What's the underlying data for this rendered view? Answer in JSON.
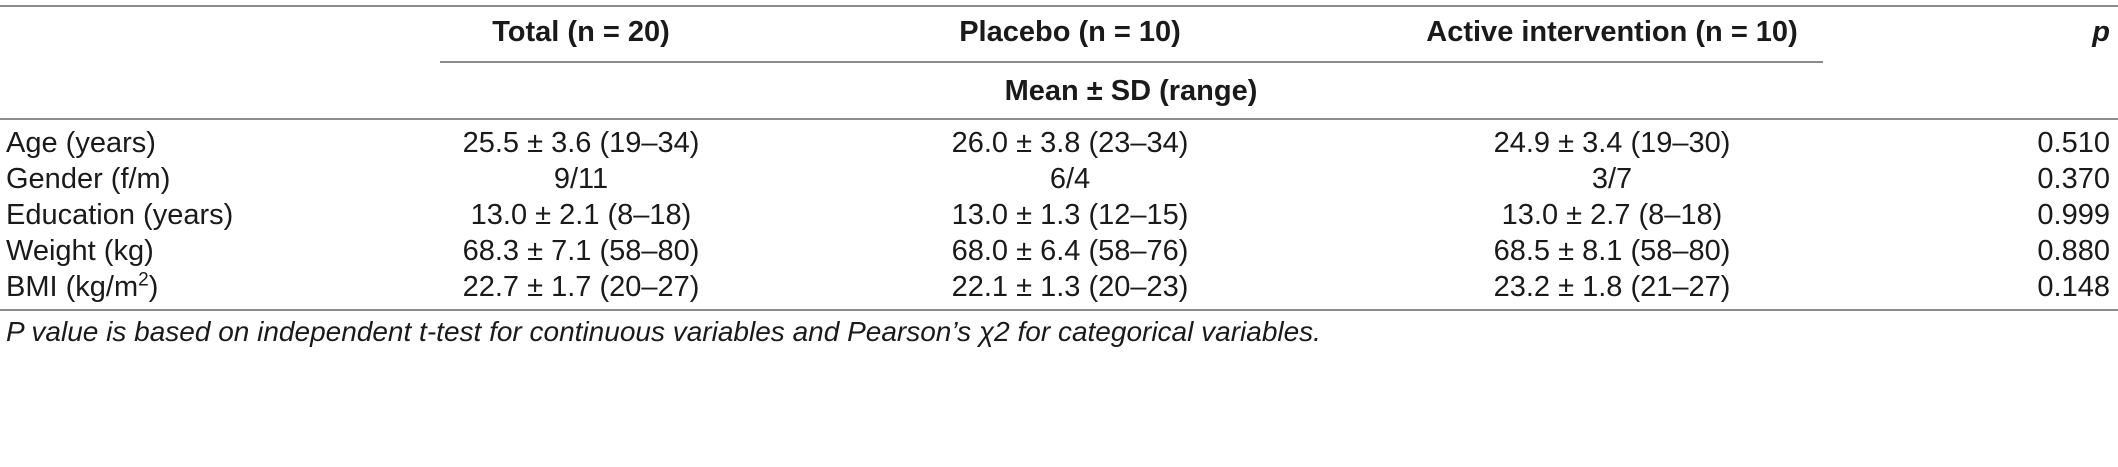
{
  "table": {
    "headers": {
      "total": "Total (n = 20)",
      "placebo": "Placebo (n = 10)",
      "active": "Active intervention (n = 10)",
      "p": "p"
    },
    "subheader": "Mean ± SD (range)",
    "rows": [
      {
        "label": "Age (years)",
        "total": "25.5 ± 3.6 (19–34)",
        "placebo": "26.0 ± 3.8 (23–34)",
        "active": "24.9 ± 3.4 (19–30)",
        "p": "0.510"
      },
      {
        "label": "Gender (f/m)",
        "total": "9/11",
        "placebo": "6/4",
        "active": "3/7",
        "p": "0.370"
      },
      {
        "label": "Education (years)",
        "total": "13.0 ± 2.1 (8–18)",
        "placebo": "13.0 ± 1.3 (12–15)",
        "active": "13.0 ± 2.7 (8–18)",
        "p": "0.999"
      },
      {
        "label": "Weight (kg)",
        "total": "68.3 ± 7.1 (58–80)",
        "placebo": "68.0 ± 6.4 (58–76)",
        "active": "68.5 ± 8.1 (58–80)",
        "p": "0.880"
      },
      {
        "label_prefix": "BMI (kg/m",
        "label_sup": "2",
        "label_suffix": ")",
        "total": "22.7 ± 1.7 (20–27)",
        "placebo": "22.1 ± 1.3 (20–23)",
        "active": "23.2 ± 1.8 (21–27)",
        "p": "0.148"
      }
    ]
  },
  "footnote": "P value is based on independent t-test for continuous variables and Pearson’s χ2 for categorical variables."
}
